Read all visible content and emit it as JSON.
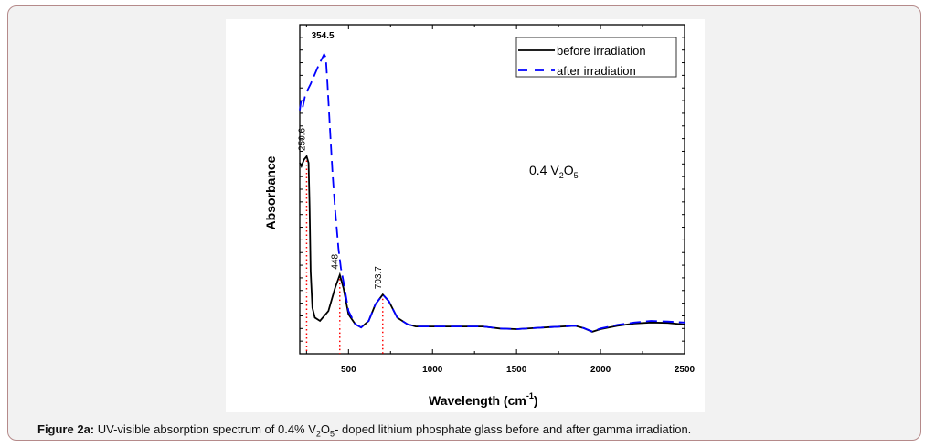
{
  "chart_data": {
    "type": "line",
    "xlabel": "Wavelength (cm",
    "xlabel_sup": "-1",
    "xlabel_end": ")",
    "ylabel": "Absorbance",
    "xlim": [
      210,
      2500
    ],
    "ylim": [
      0,
      1
    ],
    "y_tick_labels_shown": false,
    "xticks": [
      500,
      1000,
      1500,
      2000,
      2500
    ],
    "grid": false,
    "legend_position": "top-right",
    "series": [
      {
        "name": "before irradiation",
        "color": "#000000",
        "dash": "solid",
        "x": [
          210,
          220,
          235,
          250.6,
          262,
          268,
          275,
          285,
          300,
          330,
          380,
          420,
          448,
          470,
          500,
          540,
          575,
          620,
          660,
          703.7,
          740,
          790,
          850,
          900,
          1000,
          1300,
          1400,
          1500,
          1600,
          1700,
          1850,
          1900,
          1950,
          2000,
          2100,
          2200,
          2300,
          2400,
          2500
        ],
        "y": [
          0.58,
          0.57,
          0.59,
          0.6,
          0.58,
          0.45,
          0.25,
          0.14,
          0.11,
          0.1,
          0.13,
          0.2,
          0.24,
          0.2,
          0.12,
          0.09,
          0.08,
          0.1,
          0.15,
          0.18,
          0.16,
          0.11,
          0.09,
          0.083,
          0.083,
          0.083,
          0.077,
          0.075,
          0.078,
          0.081,
          0.085,
          0.078,
          0.067,
          0.075,
          0.085,
          0.092,
          0.095,
          0.094,
          0.089
        ]
      },
      {
        "name": "after irradiation",
        "color": "#0000ff",
        "dash": "dashed",
        "x": [
          210,
          218,
          228,
          240,
          255,
          275,
          300,
          325,
          345,
          354.5,
          365,
          375,
          390,
          405,
          420,
          440,
          455,
          470,
          500,
          540,
          575,
          620,
          660,
          703.7,
          740,
          790,
          850,
          900,
          1000,
          1300,
          1400,
          1500,
          1600,
          1700,
          1850,
          1900,
          1950,
          2000,
          2100,
          2200,
          2300,
          2400,
          2500
        ],
        "y": [
          0.74,
          0.77,
          0.75,
          0.78,
          0.8,
          0.82,
          0.85,
          0.88,
          0.9,
          0.91,
          0.9,
          0.82,
          0.68,
          0.55,
          0.44,
          0.32,
          0.26,
          0.22,
          0.13,
          0.09,
          0.08,
          0.1,
          0.15,
          0.18,
          0.16,
          0.11,
          0.09,
          0.083,
          0.083,
          0.083,
          0.077,
          0.075,
          0.078,
          0.081,
          0.085,
          0.078,
          0.068,
          0.077,
          0.088,
          0.095,
          0.1,
          0.098,
          0.095
        ]
      }
    ],
    "annotations": [
      {
        "text": "354.5",
        "x": 354.5,
        "rotated": false
      },
      {
        "text": "250.6",
        "x": 250.6,
        "rotated": true,
        "marker_line": true
      },
      {
        "text": "448",
        "x": 448,
        "rotated": true,
        "marker_line": true
      },
      {
        "text": "703.7",
        "x": 703.7,
        "rotated": true,
        "marker_line": true
      }
    ],
    "sample_label": "0.4 V",
    "sample_sub1": "2",
    "sample_mid": "O",
    "sample_sub2": "5",
    "marker_line_color": "#ff0000"
  },
  "caption": {
    "label": "Figure 2a:",
    "text1": " UV-visible absorption spectrum of 0.4% V",
    "sub1": "2",
    "text2": "O",
    "sub2": "5",
    "text3": "- doped lithium phosphate glass before and after gamma irradiation."
  }
}
